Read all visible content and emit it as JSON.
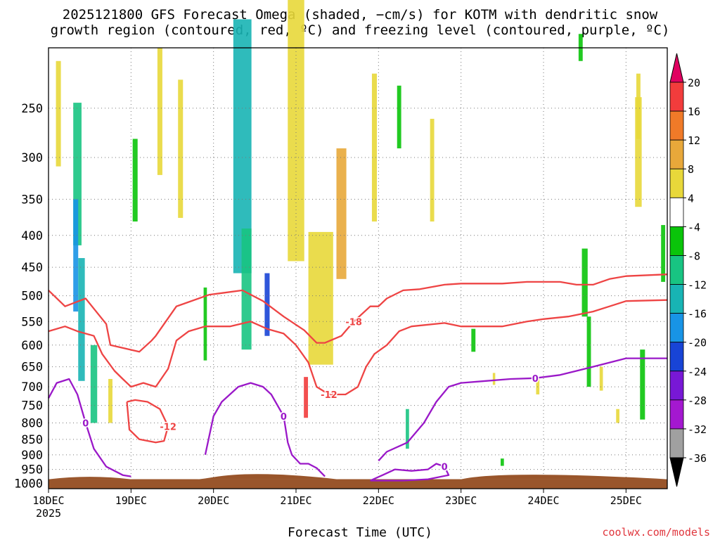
{
  "title_line1": "2025121800 GFS Forecast Omega (shaded, −cm/s) for KOTM with dendritic snow",
  "title_line2": "growth region (contoured, red, ºC) and freezing level (contoured, purple, ºC)",
  "credit": "coolwx.com/models",
  "colors": {
    "dendritic_contour": "#ee4444",
    "freezing_contour": "#9a18c8",
    "terrain": "#99552b",
    "grid": "#777777"
  },
  "chart_data": {
    "type": "heatmap",
    "xlabel": "Forecast Time (UTC)",
    "ylabel": "",
    "x_ticks": [
      "18DEC",
      "19DEC",
      "20DEC",
      "21DEC",
      "22DEC",
      "23DEC",
      "24DEC",
      "25DEC"
    ],
    "x_year": "2025",
    "x_range_days": [
      0,
      7.5
    ],
    "y_ticks": [
      250,
      300,
      350,
      400,
      450,
      500,
      550,
      600,
      650,
      700,
      750,
      800,
      850,
      900,
      950,
      1000
    ],
    "y_range_hpa": [
      200,
      1020
    ],
    "surface_pressure_hpa": 985,
    "colorbar": {
      "labels": [
        "20",
        "16",
        "12",
        "8",
        "4",
        "-4",
        "-8",
        "-12",
        "-16",
        "-20",
        "-24",
        "-28",
        "-32",
        "-36"
      ],
      "colors": [
        "#e00060",
        "#f23c3c",
        "#f07a28",
        "#e8a83a",
        "#e8d83a",
        "#ffffff",
        "#0ac40a",
        "#18c482",
        "#18b4b4",
        "#1894e6",
        "#1844d6",
        "#7818d6",
        "#a418d0",
        "#a0a0a0",
        "#000000"
      ]
    },
    "omega_cells": [
      {
        "day": 0.35,
        "p": 330,
        "w": 0.1,
        "h": 170,
        "value": -8
      },
      {
        "day": 0.33,
        "p": 440,
        "w": 0.06,
        "h": 180,
        "value": -18
      },
      {
        "day": 0.4,
        "p": 560,
        "w": 0.08,
        "h": 250,
        "value": -12
      },
      {
        "day": 0.12,
        "p": 260,
        "w": 0.06,
        "h": 100,
        "value": 6
      },
      {
        "day": 0.55,
        "p": 700,
        "w": 0.08,
        "h": 200,
        "value": -8
      },
      {
        "day": 0.75,
        "p": 740,
        "w": 0.05,
        "h": 120,
        "value": 6
      },
      {
        "day": 1.05,
        "p": 330,
        "w": 0.06,
        "h": 100,
        "value": -6
      },
      {
        "day": 1.35,
        "p": 260,
        "w": 0.06,
        "h": 120,
        "value": 5
      },
      {
        "day": 1.6,
        "p": 300,
        "w": 0.06,
        "h": 150,
        "value": 6
      },
      {
        "day": 1.9,
        "p": 560,
        "w": 0.04,
        "h": 150,
        "value": -6
      },
      {
        "day": 2.35,
        "p": 320,
        "w": 0.22,
        "h": 280,
        "value": -14
      },
      {
        "day": 2.4,
        "p": 500,
        "w": 0.12,
        "h": 220,
        "value": -10
      },
      {
        "day": 2.65,
        "p": 520,
        "w": 0.06,
        "h": 120,
        "value": -20
      },
      {
        "day": 3.0,
        "p": 300,
        "w": 0.2,
        "h": 280,
        "value": 6
      },
      {
        "day": 3.3,
        "p": 520,
        "w": 0.3,
        "h": 250,
        "value": 6
      },
      {
        "day": 3.12,
        "p": 730,
        "w": 0.05,
        "h": 110,
        "value": 18
      },
      {
        "day": 3.55,
        "p": 380,
        "w": 0.12,
        "h": 180,
        "value": 8
      },
      {
        "day": 3.95,
        "p": 300,
        "w": 0.06,
        "h": 160,
        "value": 7
      },
      {
        "day": 4.35,
        "p": 820,
        "w": 0.04,
        "h": 120,
        "value": -8
      },
      {
        "day": 4.65,
        "p": 320,
        "w": 0.05,
        "h": 120,
        "value": 5
      },
      {
        "day": 5.15,
        "p": 590,
        "w": 0.05,
        "h": 50,
        "value": -6
      },
      {
        "day": 4.25,
        "p": 260,
        "w": 0.05,
        "h": 60,
        "value": -6
      },
      {
        "day": 5.5,
        "p": 925,
        "w": 0.04,
        "h": 25,
        "value": -6
      },
      {
        "day": 6.45,
        "p": 200,
        "w": 0.05,
        "h": 20,
        "value": -6
      },
      {
        "day": 6.5,
        "p": 480,
        "w": 0.07,
        "h": 120,
        "value": -6
      },
      {
        "day": 6.7,
        "p": 680,
        "w": 0.04,
        "h": 60,
        "value": 5
      },
      {
        "day": 6.55,
        "p": 620,
        "w": 0.05,
        "h": 160,
        "value": -6
      },
      {
        "day": 7.2,
        "p": 700,
        "w": 0.06,
        "h": 180,
        "value": -6
      },
      {
        "day": 7.15,
        "p": 300,
        "w": 0.08,
        "h": 120,
        "value": 5
      },
      {
        "day": 7.45,
        "p": 430,
        "w": 0.05,
        "h": 90,
        "value": -6
      },
      {
        "day": 7.15,
        "p": 250,
        "w": 0.05,
        "h": 60,
        "value": 5
      },
      {
        "day": 5.93,
        "p": 700,
        "w": 0.04,
        "h": 40,
        "value": 5
      },
      {
        "day": 6.9,
        "p": 780,
        "w": 0.04,
        "h": 40,
        "value": 5
      },
      {
        "day": 5.4,
        "p": 680,
        "w": 0.03,
        "h": 30,
        "value": 5
      }
    ],
    "contours": [
      {
        "label": "-18",
        "color": "red",
        "points": [
          [
            0.0,
            490
          ],
          [
            0.2,
            520
          ],
          [
            0.45,
            505
          ],
          [
            0.7,
            555
          ],
          [
            0.75,
            600
          ],
          [
            1.1,
            615
          ],
          [
            1.25,
            590
          ],
          [
            1.3,
            580
          ],
          [
            1.55,
            520
          ],
          [
            1.95,
            498
          ],
          [
            2.1,
            495
          ],
          [
            2.35,
            490
          ],
          [
            2.6,
            510
          ],
          [
            2.85,
            540
          ],
          [
            3.1,
            568
          ],
          [
            3.25,
            595
          ],
          [
            3.35,
            595
          ],
          [
            3.55,
            580
          ],
          [
            3.7,
            550
          ],
          [
            3.9,
            520
          ],
          [
            4.0,
            520
          ],
          [
            4.1,
            505
          ],
          [
            4.3,
            490
          ],
          [
            4.5,
            488
          ],
          [
            4.8,
            480
          ],
          [
            5.0,
            478
          ],
          [
            5.5,
            478
          ],
          [
            5.8,
            475
          ],
          [
            6.2,
            475
          ],
          [
            6.4,
            480
          ],
          [
            6.6,
            480
          ],
          [
            6.8,
            470
          ],
          [
            7.0,
            465
          ],
          [
            7.5,
            462
          ]
        ]
      },
      {
        "label": "-12",
        "color": "red",
        "points": [
          [
            0.0,
            570
          ],
          [
            0.2,
            560
          ],
          [
            0.35,
            570
          ],
          [
            0.55,
            580
          ],
          [
            0.65,
            620
          ],
          [
            0.8,
            660
          ],
          [
            0.9,
            680
          ],
          [
            1.0,
            700
          ],
          [
            1.15,
            690
          ],
          [
            1.3,
            700
          ],
          [
            1.45,
            655
          ],
          [
            1.55,
            590
          ],
          [
            1.7,
            570
          ],
          [
            1.9,
            560
          ],
          [
            2.2,
            560
          ],
          [
            2.45,
            550
          ],
          [
            2.65,
            565
          ],
          [
            2.85,
            575
          ],
          [
            3.0,
            600
          ],
          [
            3.15,
            640
          ],
          [
            3.25,
            700
          ],
          [
            3.4,
            720
          ],
          [
            3.6,
            720
          ],
          [
            3.75,
            700
          ],
          [
            3.85,
            650
          ],
          [
            3.95,
            620
          ],
          [
            4.1,
            600
          ],
          [
            4.25,
            570
          ],
          [
            4.4,
            560
          ],
          [
            4.8,
            553
          ],
          [
            5.0,
            560
          ],
          [
            5.5,
            560
          ],
          [
            5.8,
            550
          ],
          [
            6.0,
            545
          ],
          [
            6.3,
            540
          ],
          [
            6.6,
            530
          ],
          [
            6.8,
            520
          ],
          [
            7.0,
            510
          ],
          [
            7.5,
            508
          ]
        ]
      },
      {
        "label": "-12",
        "color": "red",
        "points": [
          [
            0.95,
            740
          ],
          [
            0.98,
            820
          ],
          [
            1.1,
            850
          ],
          [
            1.3,
            860
          ],
          [
            1.4,
            855
          ],
          [
            1.45,
            810
          ],
          [
            1.35,
            760
          ],
          [
            1.2,
            740
          ],
          [
            1.05,
            735
          ],
          [
            0.95,
            740
          ]
        ]
      },
      {
        "label": "0",
        "color": "purple",
        "points": [
          [
            0.0,
            730
          ],
          [
            0.1,
            690
          ],
          [
            0.25,
            680
          ],
          [
            0.35,
            720
          ],
          [
            0.45,
            800
          ],
          [
            0.55,
            880
          ],
          [
            0.7,
            940
          ],
          [
            0.9,
            970
          ],
          [
            1.0,
            975
          ]
        ]
      },
      {
        "label": "0",
        "color": "purple",
        "points": [
          [
            1.9,
            900
          ],
          [
            2.0,
            780
          ],
          [
            2.1,
            740
          ],
          [
            2.3,
            700
          ],
          [
            2.45,
            690
          ],
          [
            2.6,
            700
          ],
          [
            2.7,
            720
          ],
          [
            2.85,
            780
          ],
          [
            2.9,
            860
          ],
          [
            2.95,
            900
          ],
          [
            3.05,
            930
          ],
          [
            3.15,
            930
          ],
          [
            3.25,
            945
          ],
          [
            3.35,
            975
          ]
        ]
      },
      {
        "label": "0",
        "color": "purple",
        "points": [
          [
            3.9,
            990
          ],
          [
            4.05,
            970
          ],
          [
            4.2,
            950
          ],
          [
            4.4,
            955
          ],
          [
            4.6,
            950
          ],
          [
            4.7,
            930
          ],
          [
            4.8,
            940
          ],
          [
            4.85,
            970
          ],
          [
            4.6,
            985
          ],
          [
            4.3,
            990
          ],
          [
            3.9,
            990
          ]
        ]
      },
      {
        "label": "0",
        "color": "purple",
        "points": [
          [
            4.0,
            920
          ],
          [
            4.1,
            890
          ],
          [
            4.35,
            860
          ],
          [
            4.55,
            800
          ],
          [
            4.7,
            740
          ],
          [
            4.85,
            700
          ],
          [
            5.0,
            690
          ],
          [
            5.3,
            685
          ],
          [
            5.6,
            680
          ],
          [
            5.9,
            678
          ],
          [
            6.2,
            670
          ],
          [
            6.4,
            660
          ],
          [
            6.6,
            650
          ],
          [
            6.8,
            640
          ],
          [
            7.0,
            630
          ],
          [
            7.2,
            630
          ],
          [
            7.5,
            630
          ]
        ]
      }
    ]
  }
}
